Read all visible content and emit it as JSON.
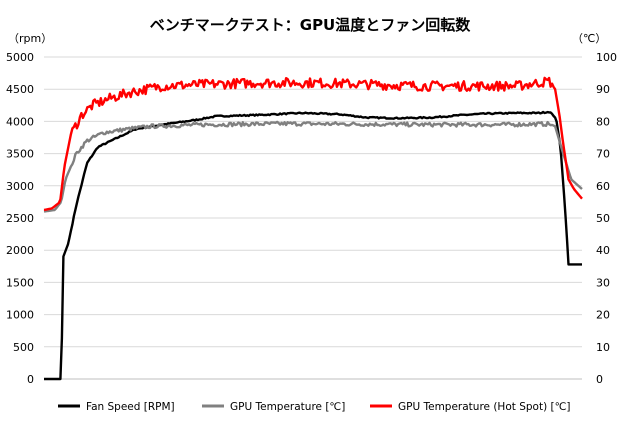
{
  "chart_data": {
    "type": "line",
    "title": "ベンチマークテスト：GPU温度とファン回転数",
    "y_left": {
      "label": "（rpm）",
      "min": 0,
      "max": 5000,
      "ticks": [
        0,
        500,
        1000,
        1500,
        2000,
        2500,
        3000,
        3500,
        4000,
        4500,
        5000
      ]
    },
    "y_right": {
      "label": "（℃）",
      "min": 0,
      "max": 100,
      "ticks": [
        0,
        10,
        20,
        30,
        40,
        50,
        60,
        70,
        80,
        90,
        100
      ]
    },
    "x_range": [
      0,
      100
    ],
    "grid": true,
    "legend_position": "bottom",
    "series": [
      {
        "name": "Fan Speed [RPM]",
        "axis": "left",
        "color": "#000000",
        "points": [
          [
            0,
            0
          ],
          [
            3.2,
            0
          ],
          [
            3.6,
            1900
          ],
          [
            4.5,
            2100
          ],
          [
            6,
            2700
          ],
          [
            8,
            3350
          ],
          [
            10,
            3600
          ],
          [
            13,
            3720
          ],
          [
            17,
            3880
          ],
          [
            22,
            3950
          ],
          [
            28,
            4020
          ],
          [
            32,
            4080
          ],
          [
            40,
            4100
          ],
          [
            48,
            4130
          ],
          [
            55,
            4110
          ],
          [
            60,
            4060
          ],
          [
            66,
            4050
          ],
          [
            72,
            4060
          ],
          [
            78,
            4100
          ],
          [
            82,
            4120
          ],
          [
            88,
            4130
          ],
          [
            92,
            4130
          ],
          [
            94,
            4150
          ],
          [
            95.2,
            4040
          ],
          [
            96,
            3600
          ],
          [
            96.8,
            2700
          ],
          [
            97.5,
            1780
          ],
          [
            100,
            1780
          ]
        ]
      },
      {
        "name": "GPU Temperature [℃]",
        "axis": "right",
        "color": "#808080",
        "points": [
          [
            0,
            52
          ],
          [
            2,
            52.5
          ],
          [
            3.2,
            55
          ],
          [
            4,
            62
          ],
          [
            6,
            70
          ],
          [
            8,
            74
          ],
          [
            11,
            76.5
          ],
          [
            15,
            77.5
          ],
          [
            20,
            78.5
          ],
          [
            30,
            79
          ],
          [
            45,
            79.3
          ],
          [
            55,
            79.2
          ],
          [
            70,
            79
          ],
          [
            85,
            79
          ],
          [
            94,
            79.2
          ],
          [
            95,
            78.5
          ],
          [
            96.5,
            70
          ],
          [
            98,
            62
          ],
          [
            100,
            59
          ]
        ]
      },
      {
        "name": "GPU Temperature (Hot Spot) [℃]",
        "axis": "right",
        "color": "#ff0000",
        "points": [
          [
            0,
            52.5
          ],
          [
            1.5,
            53
          ],
          [
            3,
            55
          ],
          [
            3.8,
            66
          ],
          [
            5,
            76
          ],
          [
            7,
            82
          ],
          [
            9,
            85
          ],
          [
            12,
            87
          ],
          [
            16,
            89
          ],
          [
            22,
            91
          ],
          [
            30,
            91.5
          ],
          [
            40,
            92
          ],
          [
            50,
            92
          ],
          [
            60,
            91.5
          ],
          [
            70,
            91
          ],
          [
            80,
            91
          ],
          [
            88,
            91
          ],
          [
            92,
            92
          ],
          [
            94,
            92.5
          ],
          [
            95,
            90
          ],
          [
            95.8,
            82
          ],
          [
            96.5,
            73
          ],
          [
            97.5,
            62
          ],
          [
            98.5,
            59
          ],
          [
            100,
            56
          ]
        ]
      }
    ]
  }
}
